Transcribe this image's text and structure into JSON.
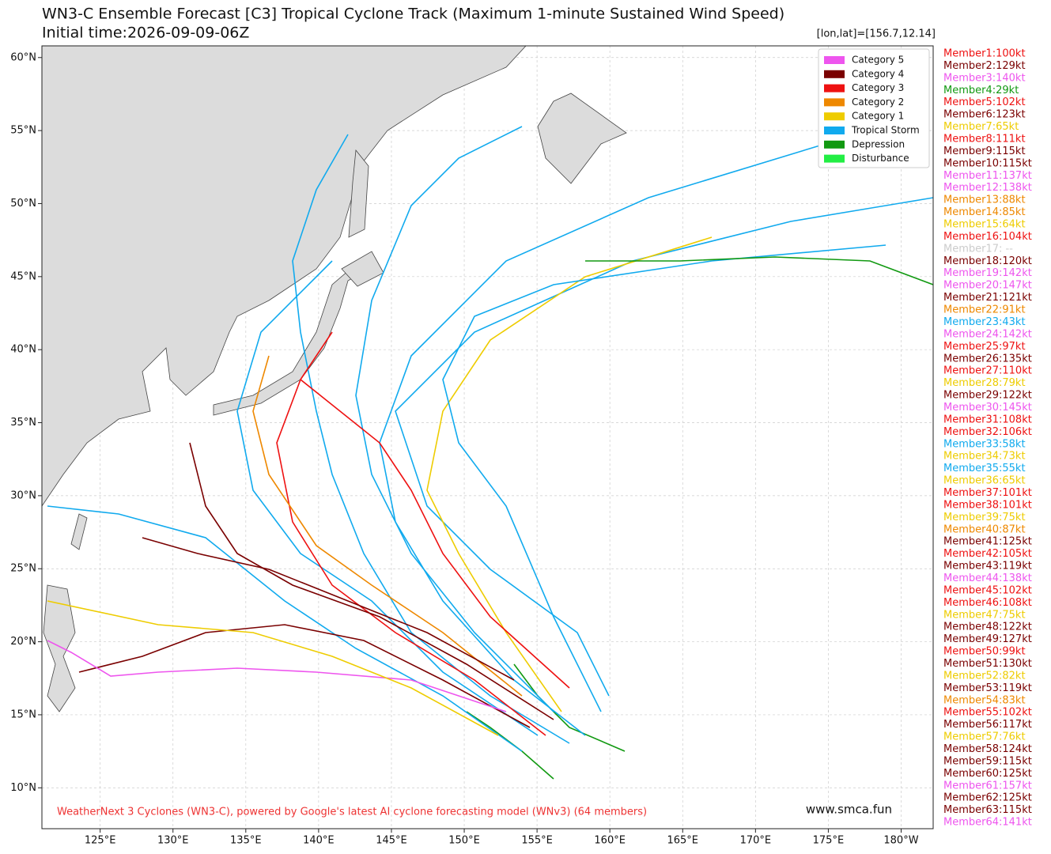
{
  "title": "WN3-C Ensemble Forecast [C3] Tropical Cyclone Track (Maximum 1-minute Sustained Wind Speed)",
  "subtitle": "Initial time:2026-09-09-06Z",
  "location": "[lon,lat]=[156.7,12.14]",
  "xlim": [
    121,
    182.2
  ],
  "ylim": [
    7.2,
    60.8
  ],
  "xticks": [
    {
      "value": 125,
      "label": "125°E"
    },
    {
      "value": 130,
      "label": "130°E"
    },
    {
      "value": 135,
      "label": "135°E"
    },
    {
      "value": 140,
      "label": "140°E"
    },
    {
      "value": 145,
      "label": "145°E"
    },
    {
      "value": 150,
      "label": "150°E"
    },
    {
      "value": 155,
      "label": "155°E"
    },
    {
      "value": 160,
      "label": "160°E"
    },
    {
      "value": 165,
      "label": "165°E"
    },
    {
      "value": 170,
      "label": "170°E"
    },
    {
      "value": 175,
      "label": "175°E"
    },
    {
      "value": 180,
      "label": "180°W"
    }
  ],
  "yticks": [
    {
      "value": 10,
      "label": "10°N"
    },
    {
      "value": 15,
      "label": "15°N"
    },
    {
      "value": 20,
      "label": "20°N"
    },
    {
      "value": 25,
      "label": "25°N"
    },
    {
      "value": 30,
      "label": "30°N"
    },
    {
      "value": 35,
      "label": "35°N"
    },
    {
      "value": 40,
      "label": "40°N"
    },
    {
      "value": 45,
      "label": "45°N"
    },
    {
      "value": 50,
      "label": "50°N"
    },
    {
      "value": 55,
      "label": "55°N"
    },
    {
      "value": 60,
      "label": "60°N"
    }
  ],
  "grid": true,
  "legend": [
    {
      "name": "Category 5",
      "color": "#ee55ee"
    },
    {
      "name": "Category 4",
      "color": "#7a0000"
    },
    {
      "name": "Category 3",
      "color": "#ee1111"
    },
    {
      "name": "Category 2",
      "color": "#ee8800"
    },
    {
      "name": "Category 1",
      "color": "#eecc00"
    },
    {
      "name": "Tropical Storm",
      "color": "#11aaee"
    },
    {
      "name": "Depression",
      "color": "#119911"
    },
    {
      "name": "Disturbance",
      "color": "#22ee44"
    }
  ],
  "members": [
    {
      "text": "Member1:100kt",
      "color": "#ee1111"
    },
    {
      "text": "Member2:129kt",
      "color": "#7a0000"
    },
    {
      "text": "Member3:140kt",
      "color": "#ee55ee"
    },
    {
      "text": "Member4:29kt",
      "color": "#119911"
    },
    {
      "text": "Member5:102kt",
      "color": "#ee1111"
    },
    {
      "text": "Member6:123kt",
      "color": "#7a0000"
    },
    {
      "text": "Member7:65kt",
      "color": "#eecc00"
    },
    {
      "text": "Member8:111kt",
      "color": "#ee1111"
    },
    {
      "text": "Member9:115kt",
      "color": "#7a0000"
    },
    {
      "text": "Member10:115kt",
      "color": "#7a0000"
    },
    {
      "text": "Member11:137kt",
      "color": "#ee55ee"
    },
    {
      "text": "Member12:138kt",
      "color": "#ee55ee"
    },
    {
      "text": "Member13:88kt",
      "color": "#ee8800"
    },
    {
      "text": "Member14:85kt",
      "color": "#ee8800"
    },
    {
      "text": "Member15:64kt",
      "color": "#eecc00"
    },
    {
      "text": "Member16:104kt",
      "color": "#ee1111"
    },
    {
      "text": "Member17: --",
      "color": "#cccccc"
    },
    {
      "text": "Member18:120kt",
      "color": "#7a0000"
    },
    {
      "text": "Member19:142kt",
      "color": "#ee55ee"
    },
    {
      "text": "Member20:147kt",
      "color": "#ee55ee"
    },
    {
      "text": "Member21:121kt",
      "color": "#7a0000"
    },
    {
      "text": "Member22:91kt",
      "color": "#ee8800"
    },
    {
      "text": "Member23:43kt",
      "color": "#11aaee"
    },
    {
      "text": "Member24:142kt",
      "color": "#ee55ee"
    },
    {
      "text": "Member25:97kt",
      "color": "#ee1111"
    },
    {
      "text": "Member26:135kt",
      "color": "#7a0000"
    },
    {
      "text": "Member27:110kt",
      "color": "#ee1111"
    },
    {
      "text": "Member28:79kt",
      "color": "#eecc00"
    },
    {
      "text": "Member29:122kt",
      "color": "#7a0000"
    },
    {
      "text": "Member30:145kt",
      "color": "#ee55ee"
    },
    {
      "text": "Member31:108kt",
      "color": "#ee1111"
    },
    {
      "text": "Member32:106kt",
      "color": "#ee1111"
    },
    {
      "text": "Member33:58kt",
      "color": "#11aaee"
    },
    {
      "text": "Member34:73kt",
      "color": "#eecc00"
    },
    {
      "text": "Member35:55kt",
      "color": "#11aaee"
    },
    {
      "text": "Member36:65kt",
      "color": "#eecc00"
    },
    {
      "text": "Member37:101kt",
      "color": "#ee1111"
    },
    {
      "text": "Member38:101kt",
      "color": "#ee1111"
    },
    {
      "text": "Member39:75kt",
      "color": "#eecc00"
    },
    {
      "text": "Member40:87kt",
      "color": "#ee8800"
    },
    {
      "text": "Member41:125kt",
      "color": "#7a0000"
    },
    {
      "text": "Member42:105kt",
      "color": "#ee1111"
    },
    {
      "text": "Member43:119kt",
      "color": "#7a0000"
    },
    {
      "text": "Member44:138kt",
      "color": "#ee55ee"
    },
    {
      "text": "Member45:102kt",
      "color": "#ee1111"
    },
    {
      "text": "Member46:108kt",
      "color": "#ee1111"
    },
    {
      "text": "Member47:75kt",
      "color": "#eecc00"
    },
    {
      "text": "Member48:122kt",
      "color": "#7a0000"
    },
    {
      "text": "Member49:127kt",
      "color": "#7a0000"
    },
    {
      "text": "Member50:99kt",
      "color": "#ee1111"
    },
    {
      "text": "Member51:130kt",
      "color": "#7a0000"
    },
    {
      "text": "Member52:82kt",
      "color": "#eecc00"
    },
    {
      "text": "Member53:119kt",
      "color": "#7a0000"
    },
    {
      "text": "Member54:83kt",
      "color": "#ee8800"
    },
    {
      "text": "Member55:102kt",
      "color": "#ee1111"
    },
    {
      "text": "Member56:117kt",
      "color": "#7a0000"
    },
    {
      "text": "Member57:76kt",
      "color": "#eecc00"
    },
    {
      "text": "Member58:124kt",
      "color": "#7a0000"
    },
    {
      "text": "Member59:115kt",
      "color": "#7a0000"
    },
    {
      "text": "Member60:125kt",
      "color": "#7a0000"
    },
    {
      "text": "Member61:157kt",
      "color": "#ee55ee"
    },
    {
      "text": "Member62:125kt",
      "color": "#7a0000"
    },
    {
      "text": "Member63:115kt",
      "color": "#7a0000"
    },
    {
      "text": "Member64:141kt",
      "color": "#ee55ee"
    }
  ],
  "footer": "WeatherNext 3 Cyclones (WN3-C), powered by Google's latest AI cyclone forecasting model (WNv3) (64 members)",
  "website": "www.smca.fun"
}
